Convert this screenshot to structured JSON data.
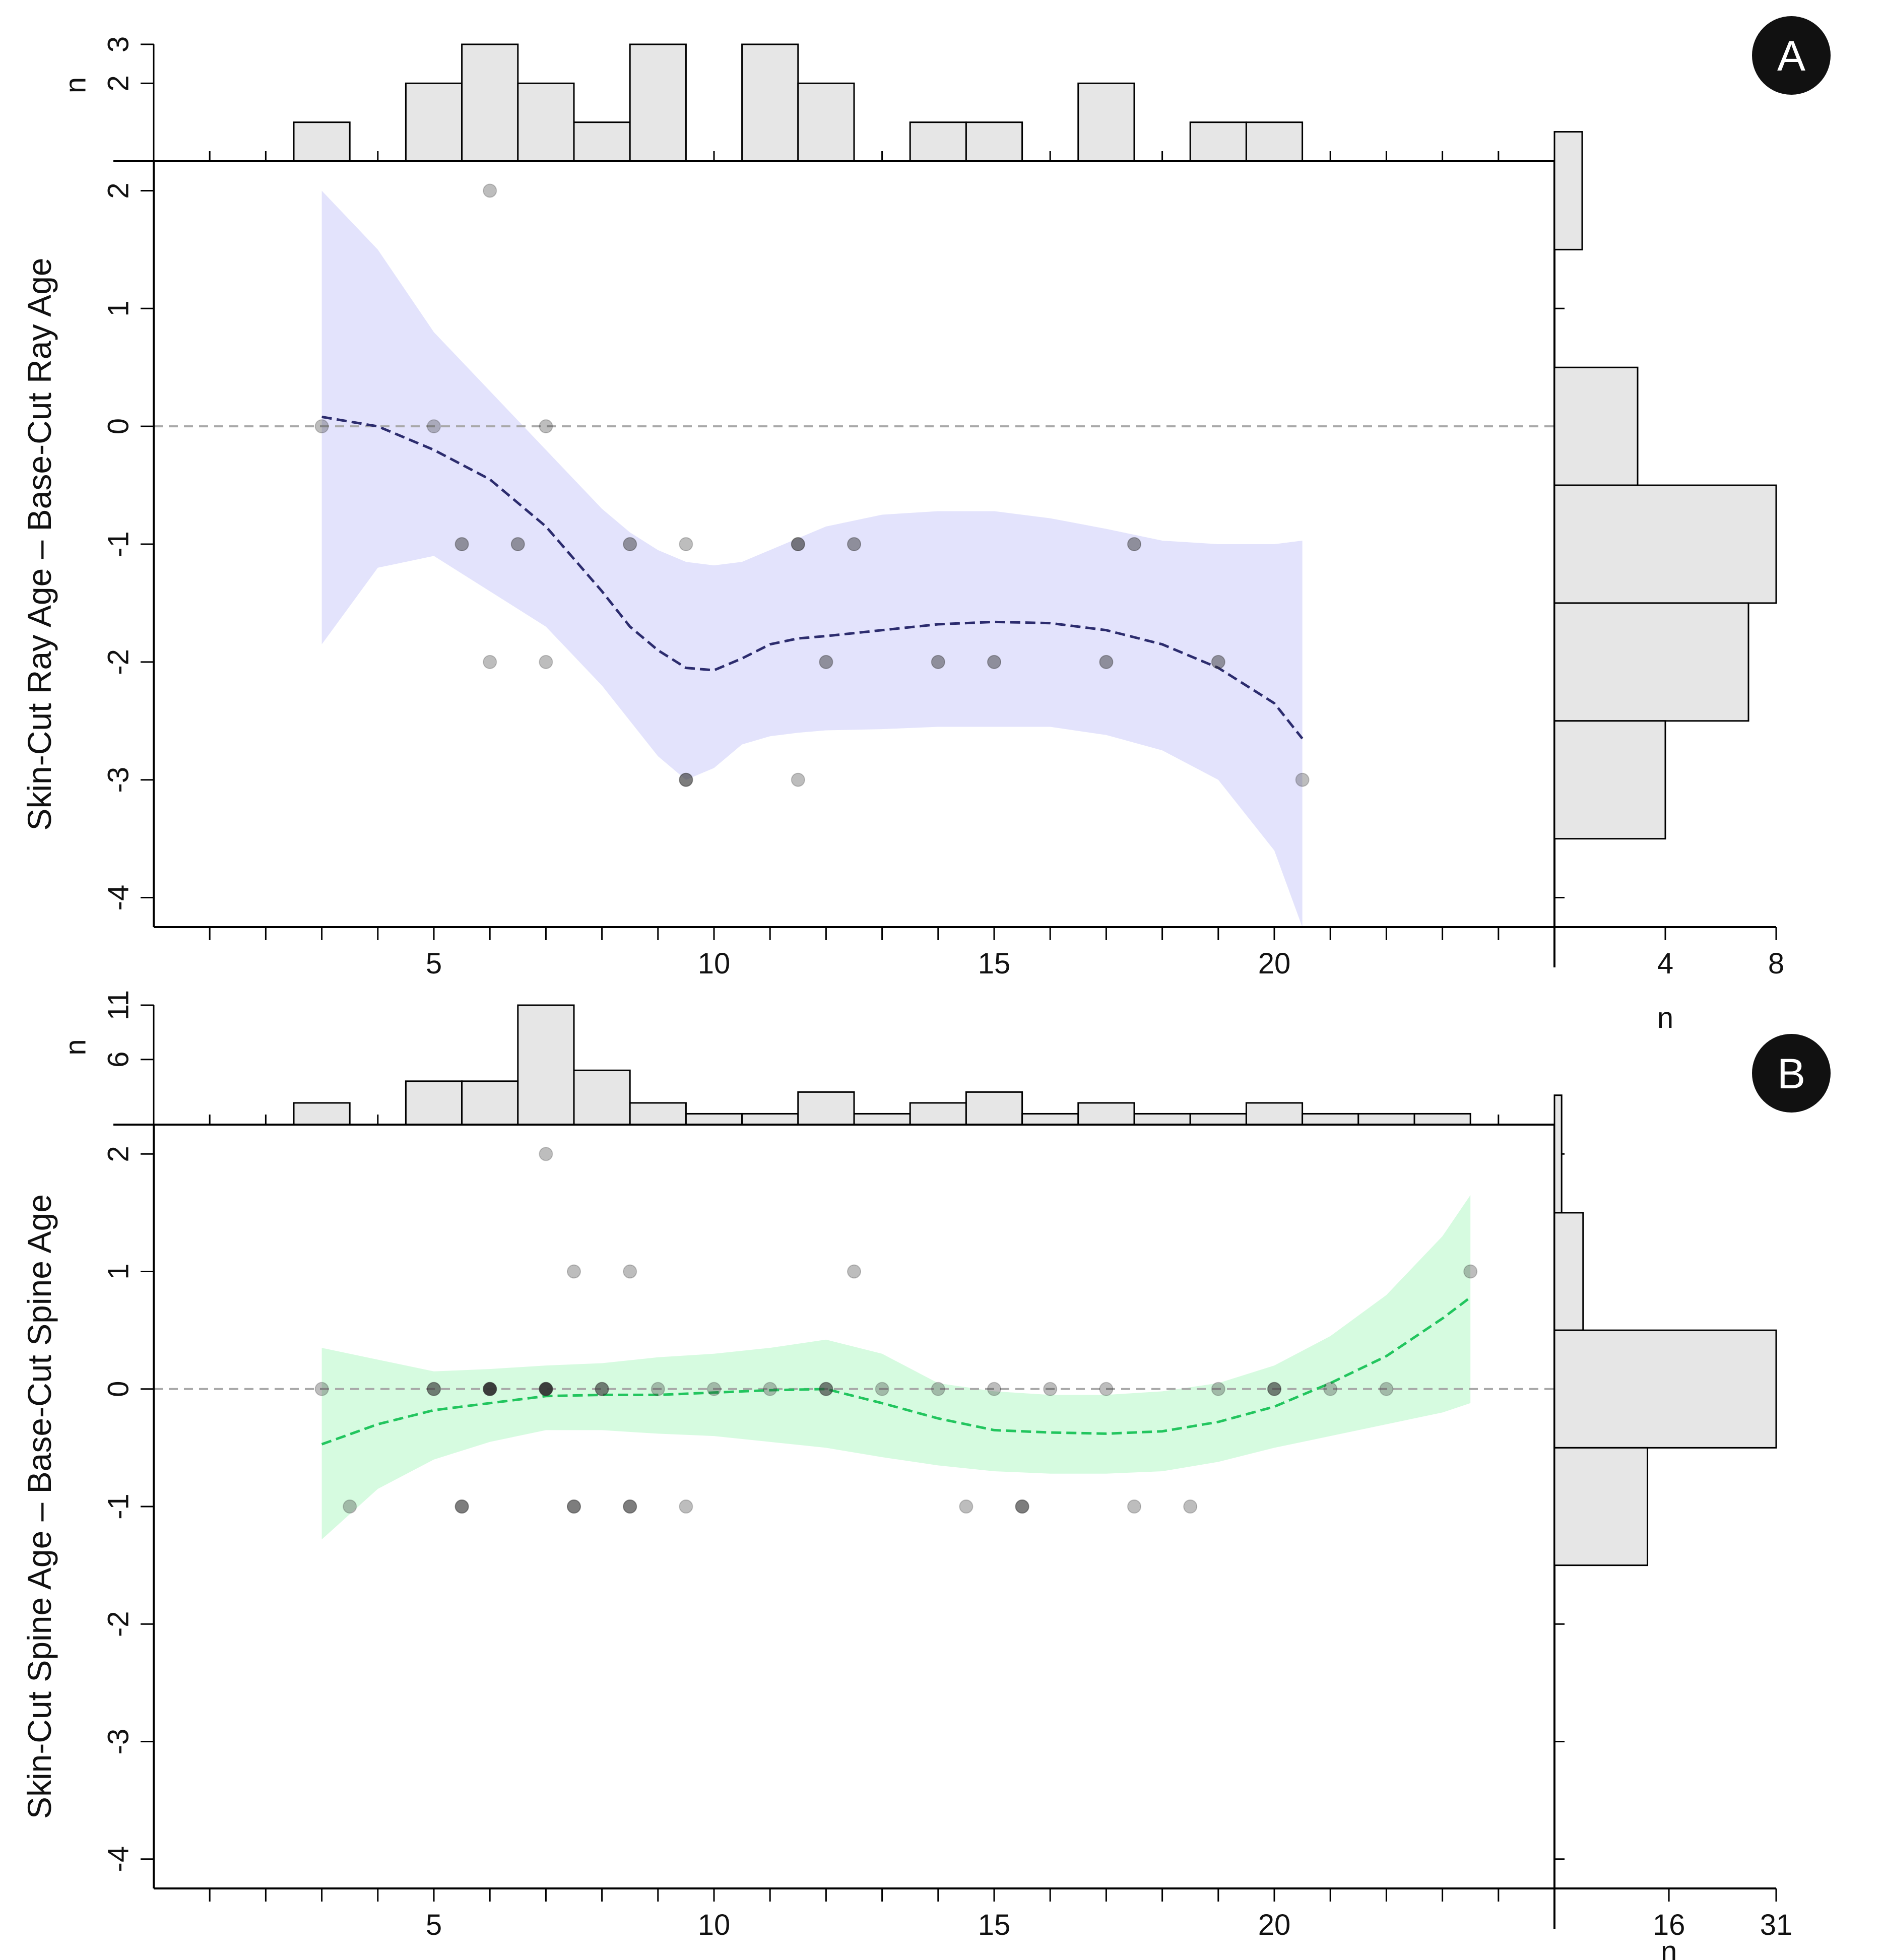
{
  "chart_data": [
    {
      "panel": "A",
      "type": "scatter",
      "ylabel": "Skin-Cut Ray Age – Base-Cut Ray Age",
      "xlabel": "",
      "xlim": [
        0,
        25
      ],
      "ylim": [
        -4.25,
        2.25
      ],
      "x_ticks": [
        5,
        10,
        15,
        20
      ],
      "y_ticks": [
        2,
        1,
        0,
        -1,
        -2,
        -3,
        -4
      ],
      "reference_line_y": 0,
      "colors": {
        "band": "#e3e3fc",
        "smooth": "#2c2c6e"
      },
      "points": [
        {
          "x": 3,
          "y": 0,
          "count": 1
        },
        {
          "x": 5,
          "y": 0,
          "count": 1
        },
        {
          "x": 7,
          "y": 0,
          "count": 1
        },
        {
          "x": 6,
          "y": 2,
          "count": 1
        },
        {
          "x": 5.5,
          "y": -1,
          "count": 2
        },
        {
          "x": 6.5,
          "y": -1,
          "count": 2
        },
        {
          "x": 8.5,
          "y": -1,
          "count": 2
        },
        {
          "x": 9.5,
          "y": -1,
          "count": 1
        },
        {
          "x": 11.5,
          "y": -1,
          "count": 3
        },
        {
          "x": 12.5,
          "y": -1,
          "count": 2
        },
        {
          "x": 17.5,
          "y": -1,
          "count": 2
        },
        {
          "x": 6,
          "y": -2,
          "count": 1
        },
        {
          "x": 7,
          "y": -2,
          "count": 1
        },
        {
          "x": 12,
          "y": -2,
          "count": 2
        },
        {
          "x": 14,
          "y": -2,
          "count": 2
        },
        {
          "x": 15,
          "y": -2,
          "count": 2
        },
        {
          "x": 17,
          "y": -2,
          "count": 2
        },
        {
          "x": 19,
          "y": -2,
          "count": 2
        },
        {
          "x": 9.5,
          "y": -3,
          "count": 3
        },
        {
          "x": 11.5,
          "y": -3,
          "count": 1
        },
        {
          "x": 20.5,
          "y": -3,
          "count": 1
        }
      ],
      "smooth": {
        "x": [
          3,
          4,
          5,
          6,
          7,
          8,
          8.5,
          9,
          9.5,
          10,
          10.5,
          11,
          11.5,
          12,
          13,
          14,
          15,
          16,
          17,
          18,
          19,
          20,
          20.5
        ],
        "y": [
          0.08,
          0.0,
          -0.2,
          -0.45,
          -0.85,
          -1.4,
          -1.7,
          -1.9,
          -2.05,
          -2.07,
          -1.97,
          -1.85,
          -1.8,
          -1.78,
          -1.73,
          -1.68,
          -1.66,
          -1.67,
          -1.73,
          -1.85,
          -2.05,
          -2.35,
          -2.65
        ],
        "lower": [
          -1.85,
          -1.2,
          -1.1,
          -1.4,
          -1.7,
          -2.2,
          -2.5,
          -2.8,
          -3.0,
          -2.9,
          -2.7,
          -2.63,
          -2.6,
          -2.58,
          -2.57,
          -2.55,
          -2.55,
          -2.55,
          -2.62,
          -2.75,
          -3.0,
          -3.6,
          -4.25
        ],
        "upper": [
          2.0,
          1.5,
          0.8,
          0.3,
          -0.2,
          -0.7,
          -0.9,
          -1.05,
          -1.15,
          -1.18,
          -1.15,
          -1.05,
          -0.95,
          -0.85,
          -0.75,
          -0.72,
          -0.72,
          -0.78,
          -0.87,
          -0.97,
          -1.0,
          -1.0,
          -0.97
        ]
      },
      "top_hist": {
        "ylabel": "n",
        "y_ticks": [
          2,
          3
        ],
        "bins": [
          {
            "x0": 2.5,
            "x1": 3.5,
            "n": 1
          },
          {
            "x0": 4.5,
            "x1": 5.5,
            "n": 2
          },
          {
            "x0": 5.5,
            "x1": 6.5,
            "n": 3
          },
          {
            "x0": 6.5,
            "x1": 7.5,
            "n": 2
          },
          {
            "x0": 7.5,
            "x1": 8.5,
            "n": 1
          },
          {
            "x0": 8.5,
            "x1": 9.5,
            "n": 3
          },
          {
            "x0": 10.5,
            "x1": 11.5,
            "n": 3
          },
          {
            "x0": 11.5,
            "x1": 12.5,
            "n": 2
          },
          {
            "x0": 13.5,
            "x1": 14.5,
            "n": 1
          },
          {
            "x0": 14.5,
            "x1": 15.5,
            "n": 1
          },
          {
            "x0": 16.5,
            "x1": 17.5,
            "n": 2
          },
          {
            "x0": 18.5,
            "x1": 19.5,
            "n": 1
          },
          {
            "x0": 19.5,
            "x1": 20.5,
            "n": 1
          }
        ]
      },
      "side_hist": {
        "xlabel": "n",
        "x_ticks": [
          4,
          8
        ],
        "xlim": [
          0,
          8
        ],
        "bins": [
          {
            "y0": 1.5,
            "y1": 2.5,
            "n": 1
          },
          {
            "y0": -0.5,
            "y1": 0.5,
            "n": 3
          },
          {
            "y0": -1.5,
            "y1": -0.5,
            "n": 8
          },
          {
            "y0": -2.5,
            "y1": -1.5,
            "n": 7
          },
          {
            "y0": -3.5,
            "y1": -2.5,
            "n": 4
          }
        ]
      }
    },
    {
      "panel": "B",
      "type": "scatter",
      "ylabel": "Skin-Cut Spine Age – Base-Cut Spine Age",
      "xlabel": "",
      "xlim": [
        0,
        25
      ],
      "ylim": [
        -4.25,
        2.25
      ],
      "x_ticks": [
        5,
        10,
        15,
        20
      ],
      "y_ticks": [
        2,
        1,
        0,
        -1,
        -2,
        -3,
        -4
      ],
      "reference_line_y": 0,
      "colors": {
        "band": "#d6fbe0",
        "smooth": "#22c55e"
      },
      "points": [
        {
          "x": 7,
          "y": 2,
          "count": 1
        },
        {
          "x": 7.5,
          "y": 1,
          "count": 1
        },
        {
          "x": 8.5,
          "y": 1,
          "count": 1
        },
        {
          "x": 12.5,
          "y": 1,
          "count": 1
        },
        {
          "x": 23.5,
          "y": 1,
          "count": 1
        },
        {
          "x": 3,
          "y": 0,
          "count": 1
        },
        {
          "x": 5,
          "y": 0,
          "count": 3
        },
        {
          "x": 6,
          "y": 0,
          "count": 5
        },
        {
          "x": 7,
          "y": 0,
          "count": 6
        },
        {
          "x": 8,
          "y": 0,
          "count": 3
        },
        {
          "x": 9,
          "y": 0,
          "count": 1
        },
        {
          "x": 10,
          "y": 0,
          "count": 1
        },
        {
          "x": 11,
          "y": 0,
          "count": 1
        },
        {
          "x": 12,
          "y": 0,
          "count": 3
        },
        {
          "x": 13,
          "y": 0,
          "count": 1
        },
        {
          "x": 14,
          "y": 0,
          "count": 1
        },
        {
          "x": 15,
          "y": 0,
          "count": 1
        },
        {
          "x": 16,
          "y": 0,
          "count": 1
        },
        {
          "x": 17,
          "y": 0,
          "count": 1
        },
        {
          "x": 19,
          "y": 0,
          "count": 1
        },
        {
          "x": 20,
          "y": 0,
          "count": 3
        },
        {
          "x": 21,
          "y": 0,
          "count": 1
        },
        {
          "x": 22,
          "y": 0,
          "count": 1
        },
        {
          "x": 3.5,
          "y": -1,
          "count": 1
        },
        {
          "x": 5.5,
          "y": -1,
          "count": 3
        },
        {
          "x": 7.5,
          "y": -1,
          "count": 3
        },
        {
          "x": 8.5,
          "y": -1,
          "count": 3
        },
        {
          "x": 9.5,
          "y": -1,
          "count": 1
        },
        {
          "x": 14.5,
          "y": -1,
          "count": 1
        },
        {
          "x": 15.5,
          "y": -1,
          "count": 3
        },
        {
          "x": 17.5,
          "y": -1,
          "count": 1
        },
        {
          "x": 18.5,
          "y": -1,
          "count": 1
        }
      ],
      "smooth": {
        "x": [
          3,
          4,
          5,
          6,
          7,
          8,
          9,
          10,
          11,
          12,
          13,
          14,
          15,
          16,
          17,
          18,
          19,
          20,
          21,
          22,
          23,
          23.5
        ],
        "y": [
          -0.47,
          -0.3,
          -0.18,
          -0.12,
          -0.06,
          -0.05,
          -0.05,
          -0.03,
          -0.01,
          0.0,
          -0.12,
          -0.25,
          -0.35,
          -0.37,
          -0.38,
          -0.36,
          -0.28,
          -0.15,
          0.05,
          0.28,
          0.6,
          0.78
        ],
        "lower": [
          -1.28,
          -0.85,
          -0.6,
          -0.45,
          -0.35,
          -0.35,
          -0.38,
          -0.4,
          -0.45,
          -0.5,
          -0.58,
          -0.65,
          -0.7,
          -0.72,
          -0.72,
          -0.7,
          -0.62,
          -0.5,
          -0.4,
          -0.3,
          -0.2,
          -0.12
        ],
        "upper": [
          0.35,
          0.25,
          0.15,
          0.17,
          0.2,
          0.22,
          0.27,
          0.3,
          0.35,
          0.42,
          0.3,
          0.05,
          -0.02,
          -0.05,
          -0.05,
          -0.02,
          0.05,
          0.2,
          0.45,
          0.8,
          1.3,
          1.65
        ]
      },
      "top_hist": {
        "ylabel": "n",
        "y_ticks": [
          6,
          11
        ],
        "bins": [
          {
            "x0": 2.5,
            "x1": 3.5,
            "n": 2
          },
          {
            "x0": 4.5,
            "x1": 5.5,
            "n": 4
          },
          {
            "x0": 5.5,
            "x1": 6.5,
            "n": 4
          },
          {
            "x0": 6.5,
            "x1": 7.5,
            "n": 11
          },
          {
            "x0": 7.5,
            "x1": 8.5,
            "n": 5
          },
          {
            "x0": 8.5,
            "x1": 9.5,
            "n": 2
          },
          {
            "x0": 9.5,
            "x1": 10.5,
            "n": 1
          },
          {
            "x0": 10.5,
            "x1": 11.5,
            "n": 1
          },
          {
            "x0": 11.5,
            "x1": 12.5,
            "n": 3
          },
          {
            "x0": 12.5,
            "x1": 13.5,
            "n": 1
          },
          {
            "x0": 13.5,
            "x1": 14.5,
            "n": 2
          },
          {
            "x0": 14.5,
            "x1": 15.5,
            "n": 3
          },
          {
            "x0": 15.5,
            "x1": 16.5,
            "n": 1
          },
          {
            "x0": 16.5,
            "x1": 17.5,
            "n": 2
          },
          {
            "x0": 17.5,
            "x1": 18.5,
            "n": 1
          },
          {
            "x0": 18.5,
            "x1": 19.5,
            "n": 1
          },
          {
            "x0": 19.5,
            "x1": 20.5,
            "n": 2
          },
          {
            "x0": 20.5,
            "x1": 21.5,
            "n": 1
          },
          {
            "x0": 21.5,
            "x1": 22.5,
            "n": 1
          },
          {
            "x0": 22.5,
            "x1": 23.5,
            "n": 1
          }
        ]
      },
      "side_hist": {
        "xlabel": "n",
        "x_ticks": [
          16,
          31
        ],
        "xlim": [
          0,
          31
        ],
        "bins": [
          {
            "y0": 1.5,
            "y1": 2.5,
            "n": 1
          },
          {
            "y0": 0.5,
            "y1": 1.5,
            "n": 4
          },
          {
            "y0": -0.5,
            "y1": 0.5,
            "n": 31
          },
          {
            "y0": -1.5,
            "y1": -0.5,
            "n": 13
          }
        ]
      }
    }
  ]
}
